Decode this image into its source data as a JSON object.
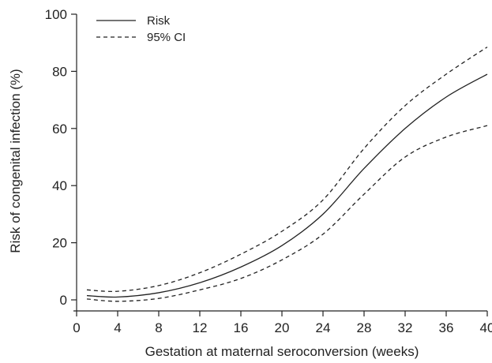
{
  "chart_data": {
    "type": "line",
    "title": "",
    "xlabel": "Gestation at maternal seroconversion (weeks)",
    "ylabel": "Risk of congenital infection (%)",
    "xlim": [
      0,
      40
    ],
    "ylim": [
      0,
      100
    ],
    "xticks": [
      0,
      4,
      8,
      12,
      16,
      20,
      24,
      28,
      32,
      36,
      40
    ],
    "yticks": [
      0,
      20,
      40,
      60,
      80,
      100
    ],
    "grid": false,
    "legend_position": "top-left",
    "x": [
      1,
      4,
      8,
      12,
      16,
      20,
      24,
      28,
      32,
      36,
      40
    ],
    "series": [
      {
        "name": "Risk",
        "style": "solid",
        "color": "#222222",
        "values": [
          1.5,
          1.0,
          2.5,
          6.0,
          11.5,
          19.0,
          30.0,
          46.0,
          60.0,
          71.0,
          79.0
        ]
      },
      {
        "name": "95% CI",
        "style": "dashed",
        "color": "#222222",
        "values": [
          3.5,
          3.0,
          5.0,
          9.5,
          16.0,
          24.0,
          35.0,
          53.0,
          68.0,
          79.0,
          88.5
        ]
      },
      {
        "name": "95% CI",
        "style": "dashed",
        "color": "#222222",
        "legend": false,
        "values": [
          0.3,
          -0.5,
          0.5,
          3.5,
          7.5,
          14.0,
          23.0,
          37.0,
          50.0,
          57.0,
          61.0
        ]
      }
    ],
    "legend": [
      {
        "label": "Risk",
        "style": "solid"
      },
      {
        "label": "95% CI",
        "style": "dashed"
      }
    ]
  }
}
